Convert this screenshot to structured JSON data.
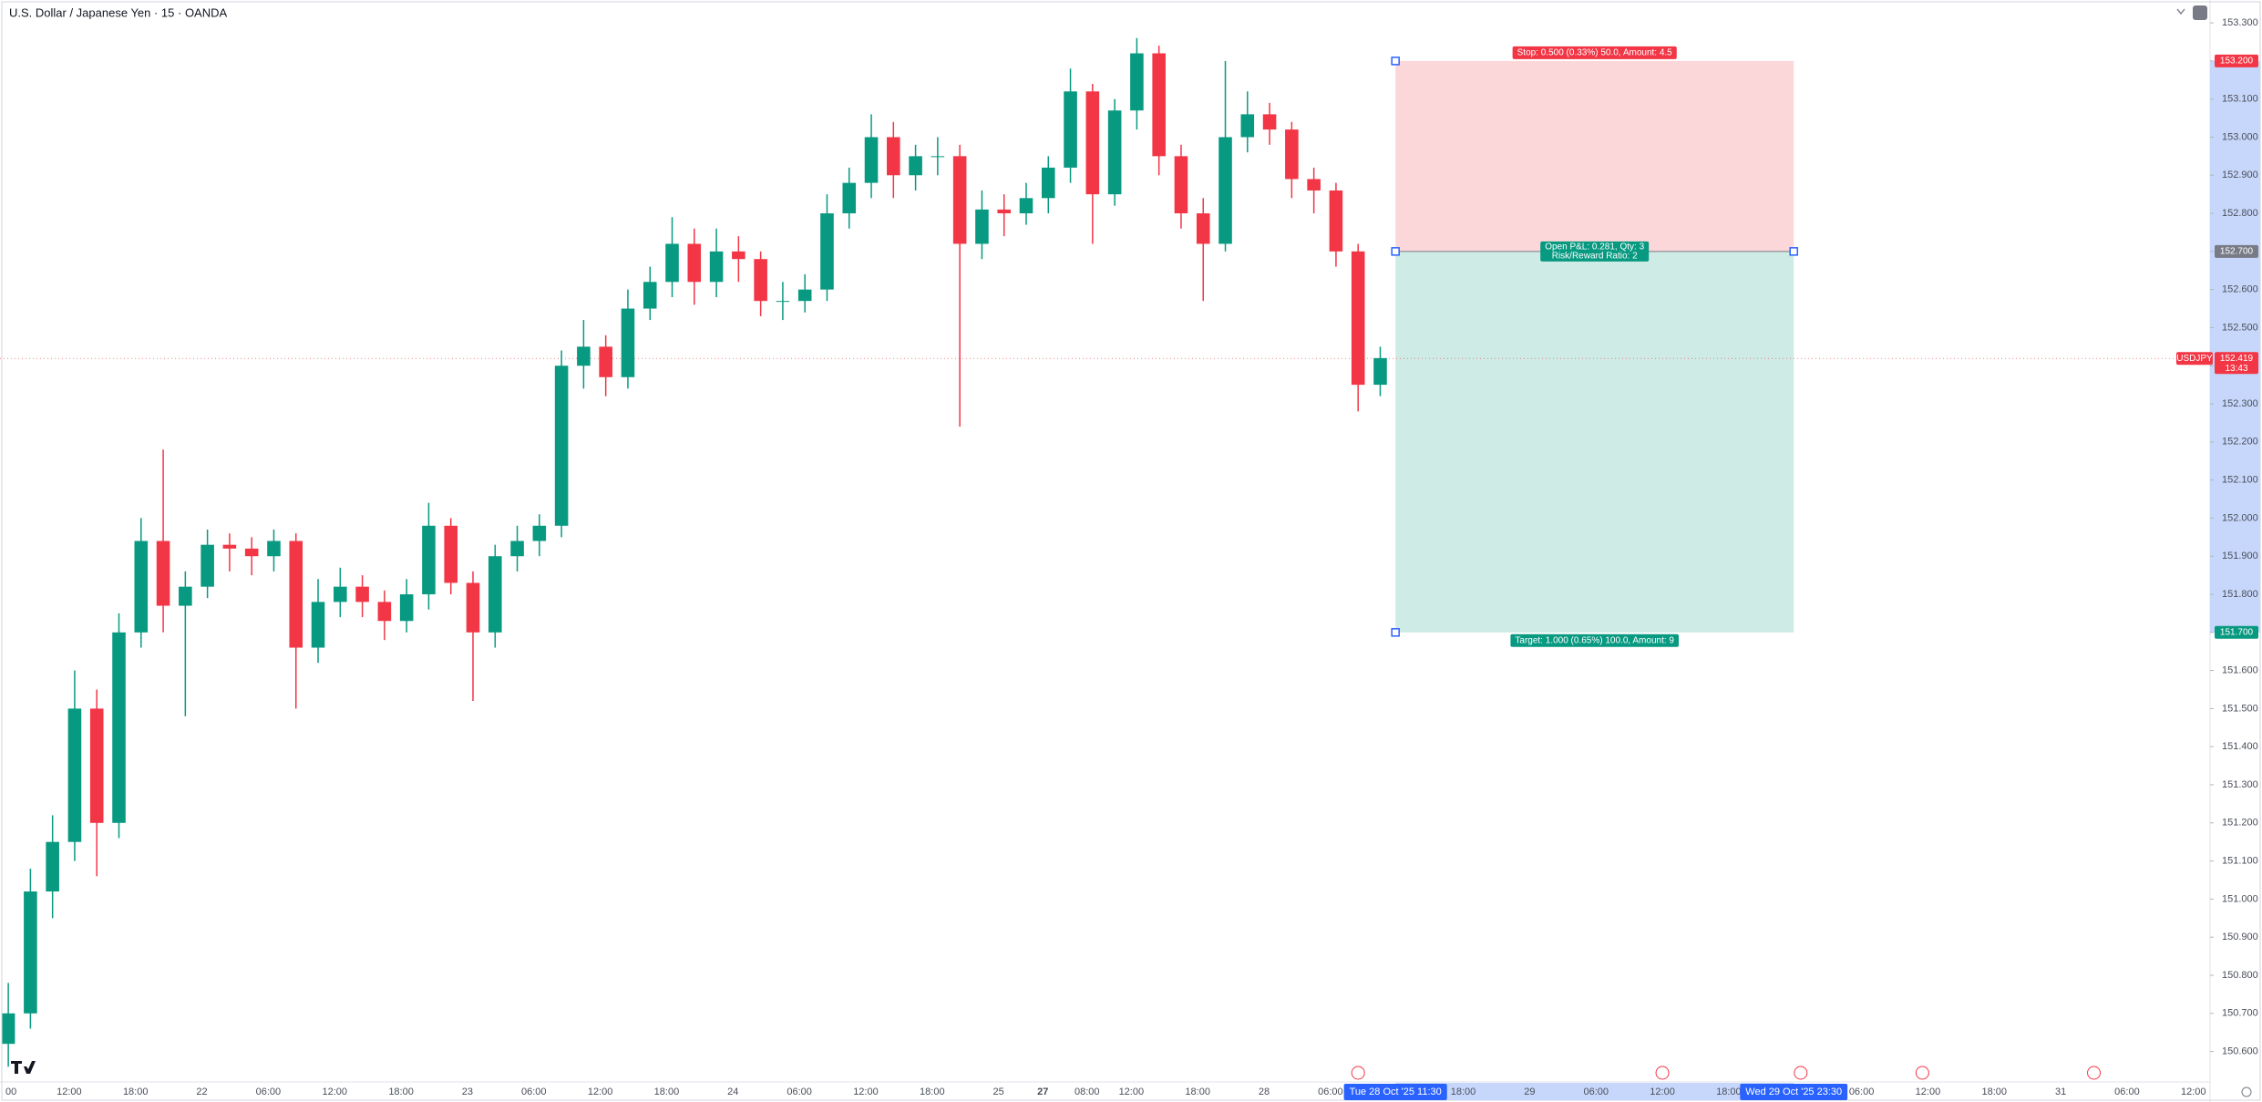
{
  "chart_data": {
    "type": "candlestick",
    "title": "U.S. Dollar / Japanese Yen · 15 · OANDA",
    "up_color": "#089981",
    "down_color": "#f23645",
    "x": [
      2,
      10,
      18,
      26,
      34,
      42,
      50,
      58,
      66,
      74,
      82,
      90,
      98,
      106,
      114,
      122,
      130,
      138,
      146,
      154,
      162,
      170,
      178,
      186,
      194,
      202,
      210,
      218,
      226,
      234,
      242,
      250,
      258,
      266,
      274,
      282,
      290,
      298,
      306,
      314,
      322,
      330,
      338,
      346,
      354,
      362,
      370,
      378,
      386,
      394,
      402,
      410,
      418,
      426,
      434,
      442,
      450,
      458,
      466,
      474,
      482,
      490,
      498
    ],
    "open": [
      150.62,
      150.7,
      151.02,
      151.15,
      151.5,
      151.2,
      151.7,
      151.94,
      151.77,
      151.82,
      151.93,
      151.92,
      151.9,
      151.94,
      151.66,
      151.78,
      151.82,
      151.78,
      151.73,
      151.8,
      151.98,
      151.83,
      151.7,
      151.9,
      151.94,
      151.98,
      152.4,
      152.45,
      152.37,
      152.55,
      152.62,
      152.72,
      152.62,
      152.7,
      152.68,
      152.57,
      152.57,
      152.6,
      152.8,
      152.88,
      153.0,
      152.9,
      152.95,
      152.95,
      152.72,
      152.81,
      152.8,
      152.84,
      152.92,
      153.12,
      152.85,
      153.07,
      153.22,
      152.95,
      152.8,
      152.72,
      153.0,
      153.06,
      153.02,
      152.89,
      152.86,
      152.7,
      152.35
    ],
    "high": [
      150.78,
      151.08,
      151.22,
      151.6,
      151.55,
      151.75,
      152.0,
      152.18,
      151.86,
      151.97,
      151.96,
      151.95,
      151.97,
      151.96,
      151.84,
      151.87,
      151.85,
      151.81,
      151.84,
      152.04,
      152.0,
      151.86,
      151.93,
      151.98,
      152.01,
      152.44,
      152.52,
      152.48,
      152.6,
      152.66,
      152.79,
      152.76,
      152.76,
      152.74,
      152.7,
      152.62,
      152.64,
      152.85,
      152.92,
      153.06,
      153.04,
      152.98,
      153.0,
      152.98,
      152.86,
      152.85,
      152.88,
      152.95,
      153.18,
      153.14,
      153.1,
      153.26,
      153.24,
      152.98,
      152.84,
      153.2,
      153.12,
      153.09,
      153.04,
      152.92,
      152.88,
      152.72,
      152.45
    ],
    "low": [
      150.56,
      150.66,
      150.95,
      151.1,
      151.06,
      151.16,
      151.66,
      151.7,
      151.48,
      151.79,
      151.86,
      151.85,
      151.86,
      151.5,
      151.62,
      151.74,
      151.74,
      151.68,
      151.7,
      151.76,
      151.8,
      151.52,
      151.66,
      151.86,
      151.9,
      151.95,
      152.34,
      152.32,
      152.34,
      152.52,
      152.58,
      152.56,
      152.58,
      152.62,
      152.53,
      152.52,
      152.54,
      152.57,
      152.76,
      152.84,
      152.84,
      152.86,
      152.9,
      152.24,
      152.68,
      152.74,
      152.77,
      152.8,
      152.88,
      152.72,
      152.82,
      153.02,
      152.9,
      152.76,
      152.57,
      152.7,
      152.96,
      152.98,
      152.84,
      152.8,
      152.66,
      152.28,
      152.32
    ],
    "close": [
      150.7,
      151.02,
      151.15,
      151.5,
      151.2,
      151.7,
      151.94,
      151.77,
      151.82,
      151.93,
      151.92,
      151.9,
      151.94,
      151.66,
      151.78,
      151.82,
      151.78,
      151.73,
      151.8,
      151.98,
      151.83,
      151.7,
      151.9,
      151.94,
      151.98,
      152.4,
      152.45,
      152.37,
      152.55,
      152.62,
      152.72,
      152.62,
      152.7,
      152.68,
      152.57,
      152.57,
      152.6,
      152.8,
      152.88,
      153.0,
      152.9,
      152.95,
      152.95,
      152.72,
      152.81,
      152.8,
      152.84,
      152.92,
      153.12,
      152.85,
      153.07,
      153.22,
      152.95,
      152.8,
      152.72,
      153.0,
      153.06,
      153.02,
      152.89,
      152.86,
      152.7,
      152.35,
      152.42
    ],
    "xlim": [
      -1,
      798
    ],
    "ylim": [
      150.52,
      153.36
    ],
    "xticks": [
      {
        "value": 3,
        "label": "00"
      },
      {
        "value": 24,
        "label": "12:00"
      },
      {
        "value": 48,
        "label": "18:00"
      },
      {
        "value": 72,
        "label": "22"
      },
      {
        "value": 96,
        "label": "06:00"
      },
      {
        "value": 120,
        "label": "12:00"
      },
      {
        "value": 144,
        "label": "18:00"
      },
      {
        "value": 168,
        "label": "23"
      },
      {
        "value": 192,
        "label": "06:00"
      },
      {
        "value": 216,
        "label": "12:00"
      },
      {
        "value": 240,
        "label": "18:00"
      },
      {
        "value": 264,
        "label": "24"
      },
      {
        "value": 288,
        "label": "06:00"
      },
      {
        "value": 312,
        "label": "12:00"
      },
      {
        "value": 336,
        "label": "18:00"
      },
      {
        "value": 360,
        "label": "25"
      },
      {
        "value": 376,
        "label": "27",
        "bold": true
      },
      {
        "value": 392,
        "label": "08:00"
      },
      {
        "value": 408,
        "label": "12:00"
      },
      {
        "value": 432,
        "label": "18:00"
      },
      {
        "value": 456,
        "label": "28"
      },
      {
        "value": 480,
        "label": "06:00"
      },
      {
        "value": 503.5,
        "label": "Tue 28 Oct '25  11:30",
        "highlight": true
      },
      {
        "value": 528,
        "label": "18:00"
      },
      {
        "value": 552,
        "label": "29"
      },
      {
        "value": 576,
        "label": "06:00"
      },
      {
        "value": 600,
        "label": "12:00"
      },
      {
        "value": 624,
        "label": "18:00"
      },
      {
        "value": 647.5,
        "label": "Wed 29 Oct '25  23:30",
        "highlight": true
      },
      {
        "value": 672,
        "label": "06:00"
      },
      {
        "value": 696,
        "label": "12:00"
      },
      {
        "value": 720,
        "label": "18:00"
      },
      {
        "value": 744,
        "label": "31"
      },
      {
        "value": 768,
        "label": "06:00"
      },
      {
        "value": 792,
        "label": "12:00"
      }
    ],
    "yticks": [
      {
        "value": 150.6,
        "label": "150.600"
      },
      {
        "value": 150.7,
        "label": "150.700"
      },
      {
        "value": 150.8,
        "label": "150.800"
      },
      {
        "value": 150.9,
        "label": "150.900"
      },
      {
        "value": 151.0,
        "label": "151.000"
      },
      {
        "value": 151.1,
        "label": "151.100"
      },
      {
        "value": 151.2,
        "label": "151.200"
      },
      {
        "value": 151.3,
        "label": "151.300"
      },
      {
        "value": 151.4,
        "label": "151.400"
      },
      {
        "value": 151.5,
        "label": "151.500"
      },
      {
        "value": 151.6,
        "label": "151.600"
      },
      {
        "value": 151.7,
        "label": "151.700"
      },
      {
        "value": 151.8,
        "label": "151.800"
      },
      {
        "value": 151.9,
        "label": "151.900"
      },
      {
        "value": 152.0,
        "label": "152.000"
      },
      {
        "value": 152.1,
        "label": "152.100"
      },
      {
        "value": 152.2,
        "label": "152.200"
      },
      {
        "value": 152.3,
        "label": "152.300"
      },
      {
        "value": 152.4,
        "label": "152.400"
      },
      {
        "value": 152.5,
        "label": "152.500"
      },
      {
        "value": 152.6,
        "label": "152.600"
      },
      {
        "value": 152.7,
        "label": "152.700"
      },
      {
        "value": 152.8,
        "label": "152.800"
      },
      {
        "value": 152.9,
        "label": "152.900"
      },
      {
        "value": 153.0,
        "label": "153.000"
      },
      {
        "value": 153.1,
        "label": "153.100"
      },
      {
        "value": 153.2,
        "label": "153.200"
      },
      {
        "value": 153.3,
        "label": "153.300"
      }
    ],
    "last_price": {
      "symbol": "USDJPY",
      "value": 152.419,
      "countdown": "13:43",
      "color": "#f23645"
    },
    "position": {
      "x": [
        503.5,
        647.5
      ],
      "stop": {
        "value": 153.2,
        "label": "153.200"
      },
      "entry": {
        "value": 152.7,
        "label": "152.700"
      },
      "target": {
        "value": 151.7,
        "label": "151.700"
      },
      "stop_text": "Stop: 0.500 (0.33%) 50.0, Amount: 4.5",
      "pnl_text": "Open P&L: 0.281, Qty: 3",
      "rr_text": "Risk/Reward Ratio: 2",
      "target_text": "Target: 1.000 (0.65%) 100.0, Amount: 9"
    }
  }
}
